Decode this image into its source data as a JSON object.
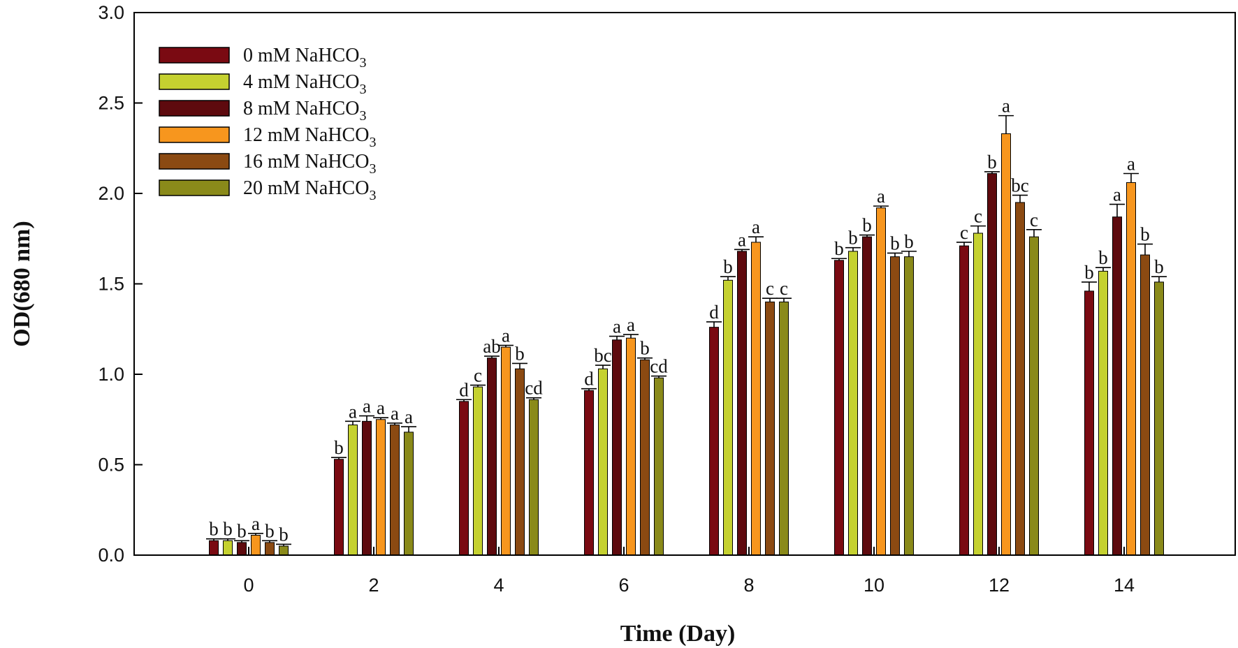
{
  "chart_data": {
    "type": "bar",
    "title": "",
    "xlabel": "Time (Day)",
    "ylabel": "OD(680 nm)",
    "ylim": [
      0,
      3.0
    ],
    "yticks": [
      "0.0",
      "0.5",
      "1.0",
      "1.5",
      "2.0",
      "2.5",
      "3.0"
    ],
    "categories": [
      "0",
      "2",
      "4",
      "6",
      "8",
      "10",
      "12",
      "14"
    ],
    "legend_position": "top-left",
    "series": [
      {
        "name": "0 mM NaHCO",
        "subscript": "3",
        "color": "#7a0a12",
        "values": [
          0.08,
          0.53,
          0.85,
          0.91,
          1.26,
          1.63,
          1.71,
          1.46
        ],
        "errors": [
          0.01,
          0.01,
          0.01,
          0.01,
          0.03,
          0.01,
          0.02,
          0.05
        ],
        "labels": [
          "b",
          "b",
          "d",
          "d",
          "d",
          "b",
          "c",
          "b"
        ]
      },
      {
        "name": "4 mM NaHCO",
        "subscript": "3",
        "color": "#c5d130",
        "values": [
          0.08,
          0.72,
          0.93,
          1.03,
          1.52,
          1.68,
          1.78,
          1.57
        ],
        "errors": [
          0.01,
          0.02,
          0.01,
          0.02,
          0.02,
          0.02,
          0.04,
          0.02
        ],
        "labels": [
          "b",
          "a",
          "c",
          "bc",
          "b",
          "b",
          "c",
          "b"
        ]
      },
      {
        "name": "8 mM NaHCO",
        "subscript": "3",
        "color": "#5e0a0e",
        "values": [
          0.07,
          0.74,
          1.09,
          1.19,
          1.68,
          1.76,
          2.11,
          1.87
        ],
        "errors": [
          0.01,
          0.03,
          0.01,
          0.02,
          0.01,
          0.01,
          0.01,
          0.07
        ],
        "labels": [
          "b",
          "a",
          "ab",
          "a",
          "a",
          "b",
          "b",
          "a"
        ]
      },
      {
        "name": "12 mM NaHCO",
        "subscript": "3",
        "color": "#f7961e",
        "values": [
          0.11,
          0.75,
          1.15,
          1.2,
          1.73,
          1.92,
          2.33,
          2.06
        ],
        "errors": [
          0.01,
          0.01,
          0.01,
          0.02,
          0.03,
          0.01,
          0.1,
          0.05
        ],
        "labels": [
          "a",
          "a",
          "a",
          "a",
          "a",
          "a",
          "a",
          "a"
        ]
      },
      {
        "name": "16 mM NaHCO",
        "subscript": "3",
        "color": "#8b4a12",
        "values": [
          0.07,
          0.72,
          1.03,
          1.08,
          1.4,
          1.65,
          1.95,
          1.66
        ],
        "errors": [
          0.01,
          0.01,
          0.03,
          0.01,
          0.02,
          0.02,
          0.04,
          0.06
        ],
        "labels": [
          "b",
          "a",
          "b",
          "b",
          "c",
          "b",
          "bc",
          "b"
        ]
      },
      {
        "name": "20 mM NaHCO",
        "subscript": "3",
        "color": "#8a8a1a",
        "values": [
          0.05,
          0.68,
          0.86,
          0.98,
          1.4,
          1.65,
          1.76,
          1.51
        ],
        "errors": [
          0.01,
          0.03,
          0.01,
          0.01,
          0.02,
          0.03,
          0.04,
          0.03
        ],
        "labels": [
          "b",
          "a",
          "cd",
          "cd",
          "c",
          "b",
          "c",
          "b"
        ]
      }
    ]
  }
}
